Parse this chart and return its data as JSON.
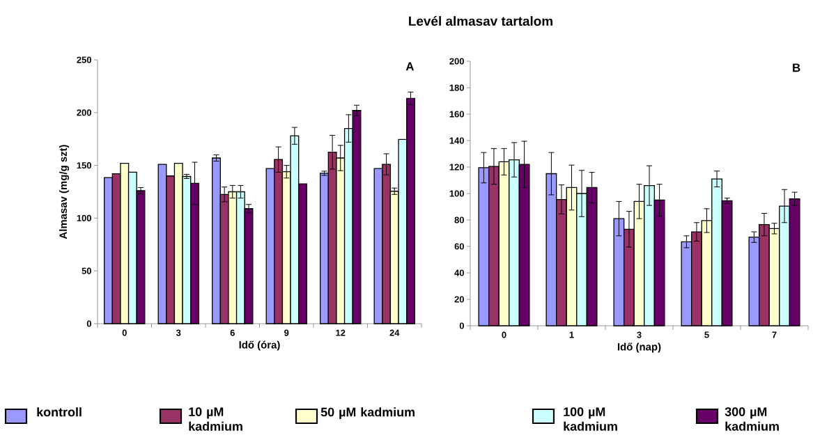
{
  "chart_data": [
    {
      "type": "bar",
      "xlabel": "Idő (óra)",
      "ylabel": "Almasav  (mg/g szt)",
      "annotations": [
        "A"
      ],
      "categories": [
        "0",
        "3",
        "6",
        "9",
        "12",
        "24"
      ],
      "ylim": [
        0,
        250
      ],
      "yticks": [
        0,
        50,
        100,
        150,
        200,
        250
      ],
      "grid": false,
      "legend": "bottom",
      "series": [
        {
          "name": "kontroll",
          "color": "#9999ff",
          "values": [
            138.5,
            151,
            157,
            147,
            142.5,
            147
          ],
          "errors": [
            null,
            null,
            3,
            null,
            2,
            null
          ]
        },
        {
          "name": "10 µM kadmium",
          "color": "#993366",
          "values": [
            142,
            140,
            122.5,
            155.5,
            162.5,
            151
          ],
          "errors": [
            null,
            null,
            7,
            12,
            16,
            10
          ]
        },
        {
          "name": "50 µM kadmium",
          "color": "#ffffcc",
          "values": [
            152,
            152,
            125,
            144,
            157,
            125.5
          ],
          "errors": [
            null,
            null,
            6,
            6,
            12,
            3
          ]
        },
        {
          "name": "100 µM kadmium",
          "color": "#ccffff",
          "values": [
            143.5,
            139.5,
            125,
            178,
            185,
            174.5
          ],
          "errors": [
            null,
            2,
            6,
            8,
            13,
            null
          ]
        },
        {
          "name": "300 µM kadmium",
          "color": "#660066",
          "values": [
            126,
            133,
            109,
            132.5,
            202,
            213.5
          ],
          "errors": [
            3,
            20,
            4,
            null,
            5,
            6
          ]
        }
      ]
    },
    {
      "type": "bar",
      "title": "Levél almasav tartalom",
      "xlabel": "Idő (nap)",
      "annotations": [
        "B"
      ],
      "categories": [
        "0",
        "1",
        "3",
        "5",
        "7"
      ],
      "ylim": [
        0,
        200
      ],
      "yticks": [
        0,
        20,
        40,
        60,
        80,
        100,
        120,
        140,
        160,
        180,
        200
      ],
      "grid": false,
      "series": [
        {
          "color": "#9999ff",
          "values": [
            119.5,
            115,
            81,
            63.5,
            67
          ],
          "errors": [
            11.5,
            16,
            13,
            4.5,
            4
          ]
        },
        {
          "color": "#993366",
          "values": [
            120.5,
            95.5,
            73,
            71,
            76.5
          ],
          "errors": [
            13.5,
            11,
            13.5,
            7,
            8.5
          ]
        },
        {
          "color": "#ffffcc",
          "values": [
            124,
            104.5,
            94,
            79.5,
            73.5
          ],
          "errors": [
            10,
            17,
            13,
            9,
            4
          ]
        },
        {
          "color": "#ccffff",
          "values": [
            125.5,
            100,
            106,
            111,
            90.5
          ],
          "errors": [
            13,
            17.5,
            15,
            6,
            12.5
          ]
        },
        {
          "color": "#660066",
          "values": [
            122,
            104.5,
            95,
            94.5,
            96
          ],
          "errors": [
            17.5,
            11.5,
            12,
            2,
            5
          ]
        }
      ]
    }
  ]
}
